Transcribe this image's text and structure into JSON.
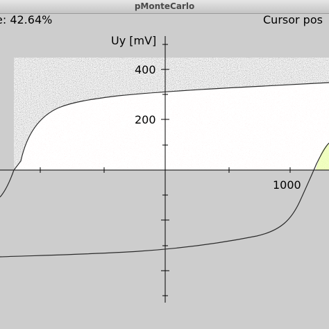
{
  "window": {
    "title": "pMonteCarlo"
  },
  "status": {
    "left_text": "e: 42.64%",
    "right_text": "Cursor pos"
  },
  "chart_data": {
    "type": "scatter",
    "title": "",
    "ylabel": "Uy [mV]",
    "xlabel": "",
    "x_tick_labels": [
      "1000"
    ],
    "y_tick_labels": [
      "400",
      "200"
    ],
    "colors": {
      "gray_region": "#8c8c8c",
      "red_region": "#e8b4b4",
      "green_region": "#8fc25a",
      "axis": "#000000",
      "curve": "#2a2a2a"
    }
  }
}
